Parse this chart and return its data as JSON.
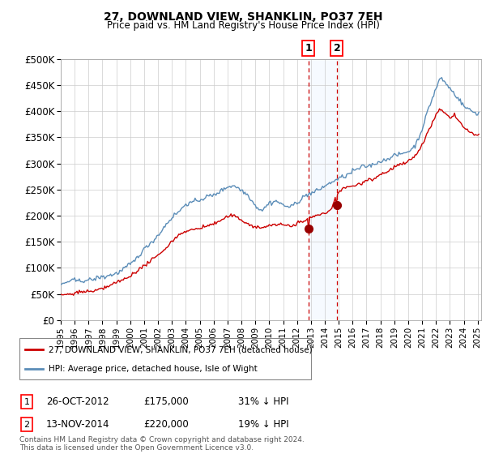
{
  "title": "27, DOWNLAND VIEW, SHANKLIN, PO37 7EH",
  "subtitle": "Price paid vs. HM Land Registry's House Price Index (HPI)",
  "legend_line1": "27, DOWNLAND VIEW, SHANKLIN, PO37 7EH (detached house)",
  "legend_line2": "HPI: Average price, detached house, Isle of Wight",
  "transaction1_date": "26-OCT-2012",
  "transaction1_price": 175000,
  "transaction1_hpi_pct": "31% ↓ HPI",
  "transaction1_year": 2012.83,
  "transaction2_date": "13-NOV-2014",
  "transaction2_price": 220000,
  "transaction2_hpi_pct": "19% ↓ HPI",
  "transaction2_year": 2014.87,
  "footer": "Contains HM Land Registry data © Crown copyright and database right 2024.\nThis data is licensed under the Open Government Licence v3.0.",
  "hpi_color": "#5b8db8",
  "price_color": "#cc0000",
  "marker_color": "#990000",
  "dashed_line_color": "#cc0000",
  "shade_color": "#ddeeff",
  "ylim": [
    0,
    500000
  ],
  "yticks": [
    0,
    50000,
    100000,
    150000,
    200000,
    250000,
    300000,
    350000,
    400000,
    450000,
    500000
  ],
  "year_start": 1995,
  "year_end": 2025
}
